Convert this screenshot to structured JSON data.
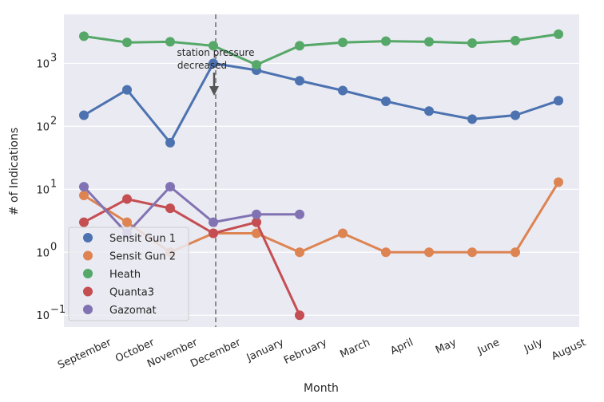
{
  "chart_data": {
    "type": "line",
    "xlabel": "Month",
    "ylabel": "# of Indications",
    "yscale": "log",
    "ylim": [
      0.065,
      6000
    ],
    "grid": true,
    "legend_position": "lower-left",
    "categories": [
      "September",
      "October",
      "November",
      "December",
      "January",
      "February",
      "March",
      "April",
      "May",
      "June",
      "July",
      "August"
    ],
    "yticks": [
      {
        "value": 0.1,
        "base": "10",
        "exp": "−1"
      },
      {
        "value": 1,
        "base": "10",
        "exp": "0"
      },
      {
        "value": 10,
        "base": "10",
        "exp": "1"
      },
      {
        "value": 100,
        "base": "10",
        "exp": "2"
      },
      {
        "value": 1000,
        "base": "10",
        "exp": "3"
      }
    ],
    "series": [
      {
        "name": "Sensit Gun 1",
        "color": "#4c72b0",
        "values": [
          150,
          380,
          55,
          1000,
          780,
          530,
          370,
          250,
          175,
          130,
          150,
          255
        ]
      },
      {
        "name": "Sensit Gun 2",
        "color": "#dd8452",
        "values": [
          8,
          3,
          1,
          2,
          2,
          1,
          2,
          1,
          1,
          1,
          1,
          13
        ]
      },
      {
        "name": "Heath",
        "color": "#55a868",
        "values": [
          2700,
          2150,
          2200,
          1900,
          950,
          1900,
          2150,
          2250,
          2200,
          2100,
          2300,
          2900
        ]
      },
      {
        "name": "Quanta3",
        "color": "#c44e52",
        "values": [
          3,
          7,
          5,
          2,
          3,
          0.1,
          null,
          null,
          null,
          null,
          null,
          null
        ]
      },
      {
        "name": "Gazomat",
        "color": "#8172b3",
        "values": [
          11,
          2,
          11,
          3,
          4,
          4,
          null,
          null,
          null,
          null,
          null,
          null
        ]
      }
    ],
    "vline": {
      "at": "December",
      "color": "#8c8c8c"
    },
    "annotation": {
      "lines": [
        "station pressure",
        "decreased"
      ],
      "target": "December"
    }
  }
}
